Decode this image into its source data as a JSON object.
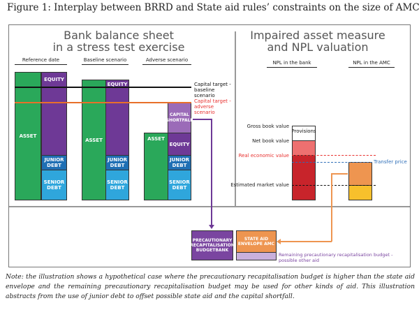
{
  "title": "Figure 1: Interplay between BRRD and State aid rules’ constraints on the size of AMCs",
  "left_panel": {
    "title_line1": "Bank balance sheet",
    "title_line2": "in a stress test exercise",
    "columns": [
      "Reference date",
      "Baseline scenario",
      "Adverse scenario"
    ],
    "asset": "ASSET",
    "equity": "EQUITY",
    "junior_debt": "JUNIOR DEBT",
    "senior_debt": "SENIOR DEBT",
    "capital_shortfall": "CAPITAL SHORTFALL",
    "capital_target_baseline": "Capital target - baseline scenario",
    "capital_target_adverse": "Capital target - adverse scenario"
  },
  "right_panel": {
    "title_line1": "Impaired asset measure",
    "title_line2": "and NPL valuation",
    "columns": [
      "NPL in the bank",
      "NPL in the AMC"
    ],
    "provisions": "Provisions",
    "gross_book_value": "Gross book value",
    "net_book_value": "Net book value",
    "real_economic_value": "Real economic value",
    "transfer_price": "Transfer price",
    "estimated_market_value": "Estimated market value"
  },
  "bottom": {
    "recap_budget": "PRECAUTIONARY RECAPITALISATION BUDGETBANK",
    "state_aid": "STATE AID ENVELOPE AMC",
    "remaining": "Remaining precautionary recapitalisation budget - possible other aid"
  },
  "colors": {
    "asset": "#2aa85a",
    "equity": "#6e3996",
    "junior": "#1f6fb4",
    "senior": "#2fa6dc",
    "adverse": "#e8702a",
    "real_value": "#e8312f",
    "transfer": "#2f6fb8"
  },
  "note": "Note: the illustration shows a hypothetical case where the precautionary recapitalisation budget is higher than the state aid envelope and the remaining precautionary recapitalisation budget may be used for other kinds of aid. This illustration abstracts from the use of junior debt to offset possible state aid and the capital shortfall."
}
